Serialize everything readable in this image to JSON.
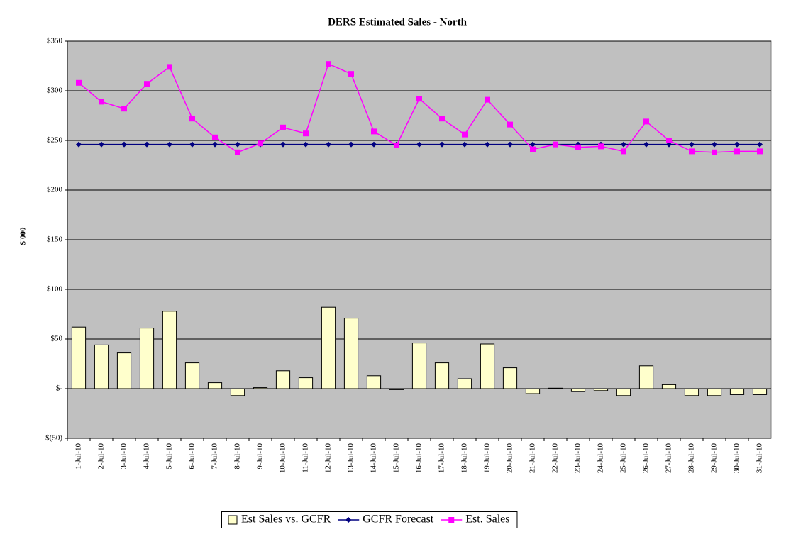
{
  "chart_data": {
    "type": "combo",
    "title": "DERS Estimated Sales - North",
    "y_label": "$'000",
    "categories": [
      "1-Jul-10",
      "2-Jul-10",
      "3-Jul-10",
      "4-Jul-10",
      "5-Jul-10",
      "6-Jul-10",
      "7-Jul-10",
      "8-Jul-10",
      "9-Jul-10",
      "10-Jul-10",
      "11-Jul-10",
      "12-Jul-10",
      "13-Jul-10",
      "14-Jul-10",
      "15-Jul-10",
      "16-Jul-10",
      "17-Jul-10",
      "18-Jul-10",
      "19-Jul-10",
      "20-Jul-10",
      "21-Jul-10",
      "22-Jul-10",
      "23-Jul-10",
      "24-Jul-10",
      "25-Jul-10",
      "26-Jul-10",
      "27-Jul-10",
      "28-Jul-10",
      "29-Jul-10",
      "30-Jul-10",
      "31-Jul-10"
    ],
    "series": [
      {
        "name": "Est Sales vs. GCFR",
        "type": "bar",
        "color": "#ffffcc",
        "values": [
          62,
          44,
          36,
          61,
          78,
          26,
          6,
          -7,
          1,
          18,
          11,
          82,
          71,
          13,
          -1,
          46,
          26,
          10,
          45,
          21,
          -5,
          0.5,
          -3,
          -2,
          -7,
          23,
          4,
          -7,
          -7,
          -6,
          -6
        ]
      },
      {
        "name": "GCFR Forecast",
        "type": "line",
        "marker": "diamond",
        "color": "#000080",
        "values": [
          246,
          246,
          246,
          246,
          246,
          246,
          246,
          246,
          246,
          246,
          246,
          246,
          246,
          246,
          246,
          246,
          246,
          246,
          246,
          246,
          246,
          246,
          246,
          246,
          246,
          246,
          246,
          246,
          246,
          246,
          246
        ]
      },
      {
        "name": "Est. Sales",
        "type": "line",
        "marker": "square",
        "color": "#ff00ff",
        "values": [
          308,
          289,
          282,
          307,
          324,
          272,
          253,
          238,
          247,
          263,
          257,
          327,
          317,
          259,
          245,
          292,
          272,
          256,
          291,
          266,
          241,
          246,
          243,
          244,
          239,
          269,
          250,
          239,
          238,
          239,
          239
        ]
      }
    ],
    "ylim": [
      -50,
      350
    ],
    "yticks": [
      {
        "value": -50,
        "label": "$(50)"
      },
      {
        "value": 0,
        "label": "$-"
      },
      {
        "value": 50,
        "label": "$50"
      },
      {
        "value": 100,
        "label": "$100"
      },
      {
        "value": 150,
        "label": "$150"
      },
      {
        "value": 200,
        "label": "$200"
      },
      {
        "value": 250,
        "label": "$250"
      },
      {
        "value": 300,
        "label": "$300"
      },
      {
        "value": 350,
        "label": "$350"
      }
    ],
    "grid": true,
    "plot_background": "#c0c0c0",
    "legend": "bottom"
  }
}
